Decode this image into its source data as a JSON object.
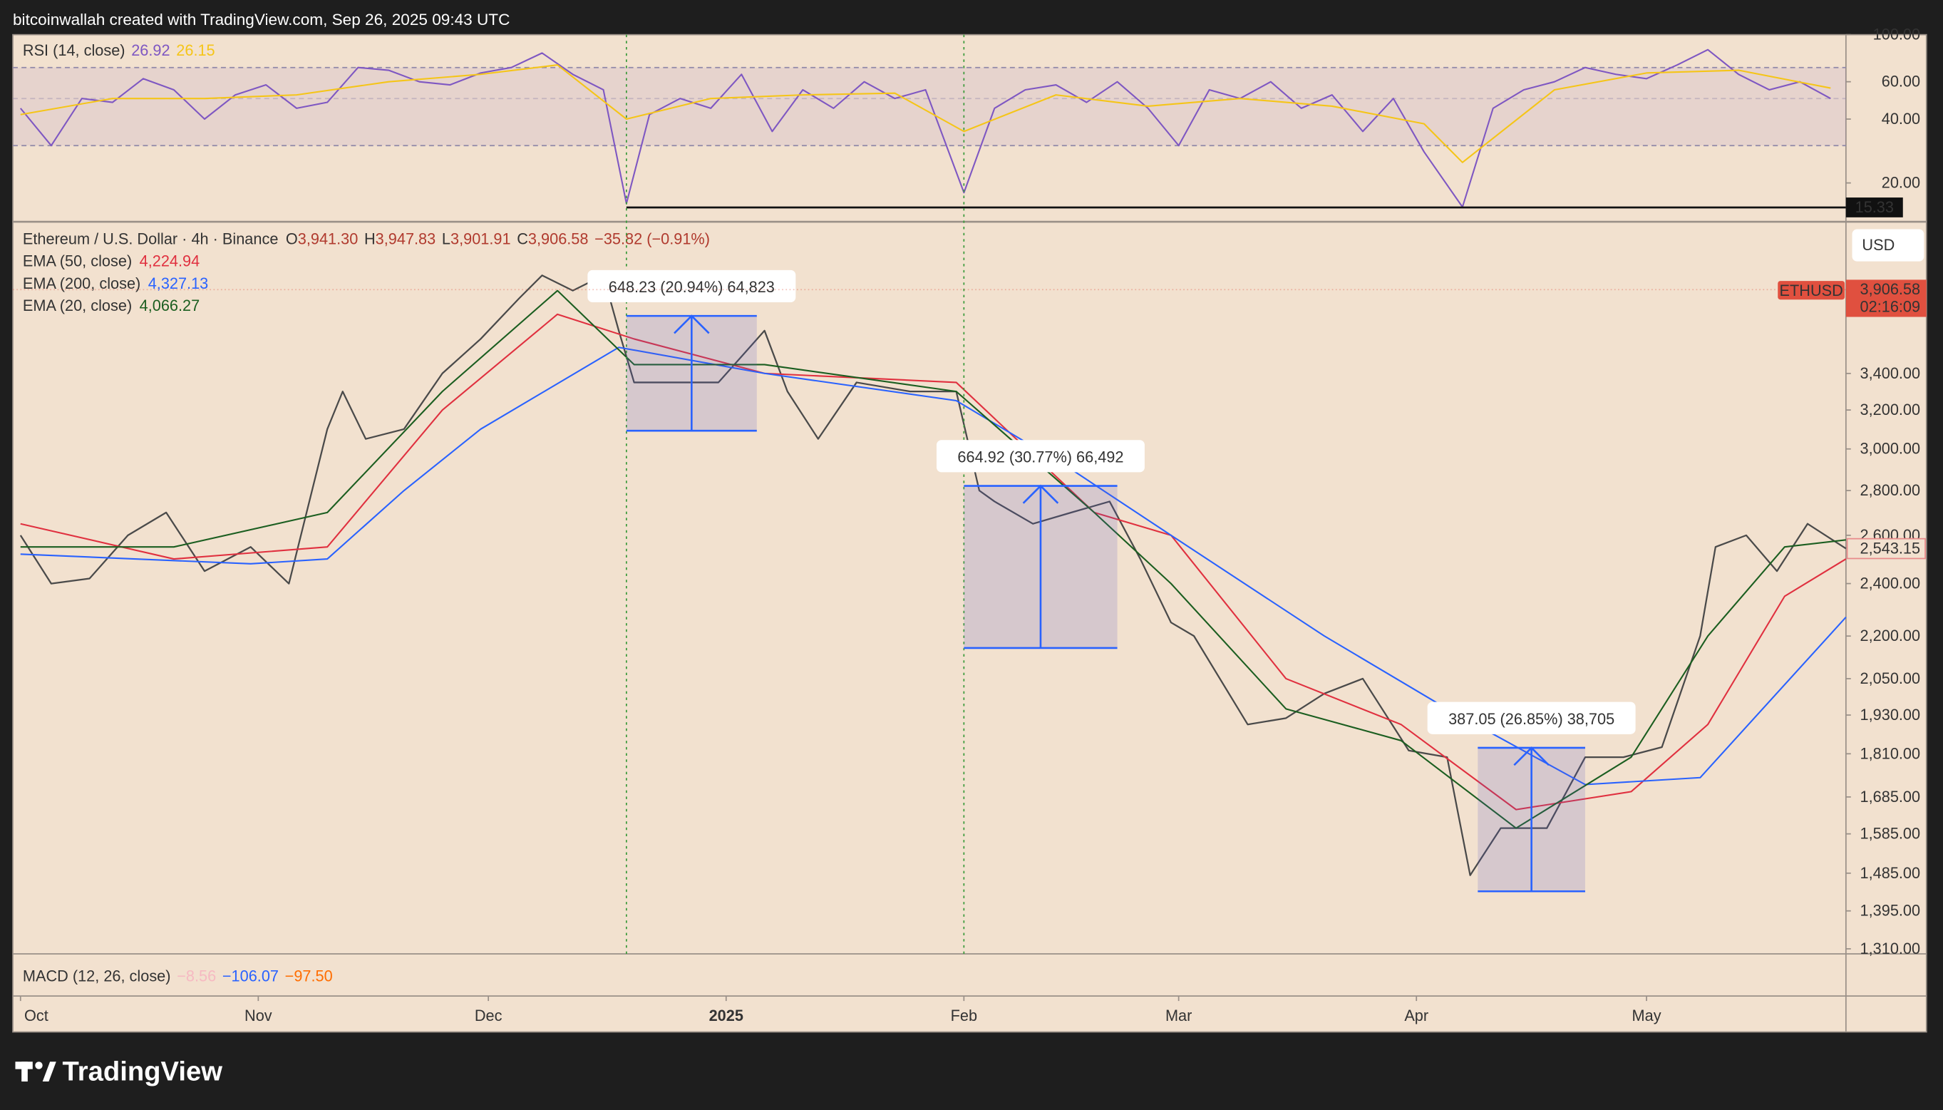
{
  "header": {
    "text": "bitcoinwallah created with TradingView.com, Sep 26, 2025 09:43 UTC"
  },
  "footer": {
    "logo": "TradingView"
  },
  "chart_data": [
    {
      "type": "line",
      "title": "RSI (14, close)",
      "log_scale": true,
      "xlim": [
        -1,
        238
      ],
      "ylim": [
        13.3,
        100
      ],
      "yticks": [
        {
          "value": 20,
          "label": "20.00"
        },
        {
          "value": 40,
          "label": "40.00"
        },
        {
          "value": 60,
          "label": "60.00"
        },
        {
          "value": 100,
          "label": "100.00"
        }
      ],
      "band": [
        30,
        70
      ],
      "midline": 50,
      "level": 15.33,
      "series": [
        {
          "color": "#7e57c2",
          "last": 26.92,
          "x": [
            0,
            4,
            8,
            12,
            16,
            20,
            24,
            28,
            32,
            36,
            40,
            44,
            48,
            52,
            56,
            60,
            64,
            68,
            72,
            76,
            79,
            82,
            86,
            90,
            94,
            98,
            102,
            106,
            110,
            114,
            118,
            123,
            127,
            131,
            135,
            139,
            143,
            147,
            151,
            155,
            159,
            163,
            167,
            171,
            175,
            179,
            183,
            188,
            192,
            196,
            200,
            204,
            208,
            212,
            216,
            220,
            224,
            228,
            232,
            236
          ],
          "values": [
            45,
            30,
            50,
            48,
            62,
            55,
            40,
            52,
            58,
            45,
            48,
            70,
            68,
            60,
            58,
            66,
            70,
            82,
            65,
            55,
            16,
            42,
            50,
            45,
            65,
            35,
            55,
            45,
            60,
            50,
            55,
            18,
            45,
            55,
            58,
            48,
            60,
            45,
            30,
            55,
            50,
            60,
            45,
            52,
            35,
            50,
            28,
            15.4,
            45,
            55,
            60,
            70,
            65,
            62,
            72,
            85,
            65,
            55,
            60,
            50
          ]
        },
        {
          "color": "#f5c518",
          "last": 26.15,
          "x": [
            0,
            12,
            24,
            36,
            48,
            60,
            70,
            79,
            90,
            102,
            114,
            123,
            135,
            147,
            159,
            171,
            183,
            188,
            200,
            212,
            224,
            236
          ],
          "values": [
            42,
            50,
            50,
            52,
            60,
            65,
            72,
            40,
            50,
            52,
            53,
            35,
            52,
            46,
            50,
            46,
            38,
            25,
            55,
            66,
            68,
            56
          ]
        }
      ]
    },
    {
      "type": "line",
      "title": "Ethereum / U.S. Dollar · 4h · Binance",
      "log_scale": true,
      "xlim": [
        -1,
        238
      ],
      "ylim": [
        1299,
        4363
      ],
      "ohlc": [
        {
          "prefix": "O",
          "value": 3941.3,
          "label": "3,941.30"
        },
        {
          "prefix": "H",
          "value": 3947.83,
          "label": "3,947.83"
        },
        {
          "prefix": "L",
          "value": 3901.91,
          "label": "3,901.91"
        },
        {
          "prefix": "C",
          "value": 3906.58,
          "label": "3,906.58"
        }
      ],
      "change": {
        "value": -35.82,
        "label": "−35.82 (−0.91%)"
      },
      "yticks": [
        {
          "value": 1310,
          "label": "1,310.00"
        },
        {
          "value": 1395,
          "label": "1,395.00"
        },
        {
          "value": 1485,
          "label": "1,485.00"
        },
        {
          "value": 1585,
          "label": "1,585.00"
        },
        {
          "value": 1685,
          "label": "1,685.00"
        },
        {
          "value": 1810,
          "label": "1,810.00"
        },
        {
          "value": 1930,
          "label": "1,930.00"
        },
        {
          "value": 2050,
          "label": "2,050.00"
        },
        {
          "value": 2200,
          "label": "2,200.00"
        },
        {
          "value": 2400,
          "label": "2,400.00"
        },
        {
          "value": 2600,
          "label": "2,600.00"
        },
        {
          "value": 2800,
          "label": "2,800.00"
        },
        {
          "value": 3000,
          "label": "3,000.00"
        },
        {
          "value": 3200,
          "label": "3,200.00"
        },
        {
          "value": 3400,
          "label": "3,400.00"
        }
      ],
      "xticks": [
        {
          "value": 0,
          "label": "Oct"
        },
        {
          "value": 31,
          "label": "Nov"
        },
        {
          "value": 61,
          "label": "Dec"
        },
        {
          "value": 92,
          "label": "2025"
        },
        {
          "value": 123,
          "label": "Feb"
        },
        {
          "value": 151,
          "label": "Mar"
        },
        {
          "value": 182,
          "label": "Apr"
        },
        {
          "value": 212,
          "label": "May"
        }
      ],
      "currency": "USD",
      "symbol": "ETHUSD",
      "current_price": {
        "value": 3906.58,
        "label": "3,906.58"
      },
      "countdown": "02:16:09",
      "last_price": {
        "value": 2543.15,
        "label": "2,543.15"
      },
      "vlines": [
        79,
        123
      ],
      "series": [
        {
          "color": "#4a4a4a",
          "x": [
            0,
            4,
            9,
            14,
            19,
            24,
            30,
            35,
            40,
            42,
            45,
            50,
            55,
            60,
            65,
            68,
            72,
            76,
            78,
            80,
            85,
            91,
            97,
            100,
            104,
            109,
            116,
            122,
            125,
            127,
            132,
            137,
            142,
            146,
            150,
            153,
            160,
            165,
            170,
            175,
            181,
            186,
            189,
            193,
            199,
            204,
            209,
            214,
            219,
            221,
            225,
            229,
            233,
            238
          ],
          "values": [
            2600,
            2400,
            2420,
            2600,
            2700,
            2450,
            2550,
            2400,
            3100,
            3300,
            3050,
            3100,
            3400,
            3600,
            3850,
            4000,
            3900,
            4000,
            3650,
            3350,
            3350,
            3350,
            3650,
            3300,
            3050,
            3350,
            3300,
            3300,
            2800,
            2750,
            2650,
            2700,
            2750,
            2500,
            2250,
            2200,
            1900,
            1920,
            2000,
            2050,
            1820,
            1800,
            1480,
            1600,
            1600,
            1800,
            1800,
            1830,
            2200,
            2550,
            2600,
            2450,
            2650,
            2543.15
          ]
        },
        {
          "name": "EMA (50, close)",
          "color": "#e0303f",
          "last": {
            "value": 4224.94,
            "label": "4,224.94"
          },
          "x": [
            0,
            20,
            40,
            55,
            70,
            80,
            97,
            122,
            140,
            150,
            165,
            180,
            195,
            210,
            220,
            230,
            238
          ],
          "values": [
            2650,
            2500,
            2550,
            3200,
            3750,
            3600,
            3400,
            3350,
            2700,
            2600,
            2050,
            1900,
            1650,
            1700,
            1900,
            2350,
            2500
          ]
        },
        {
          "name": "EMA (200, close)",
          "color": "#2962ff",
          "last": {
            "value": 4327.13,
            "label": "4,327.13"
          },
          "x": [
            0,
            30,
            40,
            50,
            60,
            78,
            97,
            122,
            137,
            150,
            170,
            186,
            204,
            219,
            238
          ],
          "values": [
            2520,
            2480,
            2500,
            2800,
            3100,
            3550,
            3400,
            3250,
            2900,
            2600,
            2200,
            1950,
            1720,
            1740,
            2270
          ]
        },
        {
          "name": "EMA (20, close)",
          "color": "#1b5e20",
          "last": {
            "value": 4066.27,
            "label": "4,066.27"
          },
          "x": [
            0,
            20,
            40,
            55,
            70,
            80,
            97,
            122,
            140,
            150,
            165,
            180,
            195,
            210,
            220,
            230,
            238
          ],
          "values": [
            2550,
            2550,
            2700,
            3300,
            3900,
            3450,
            3450,
            3300,
            2700,
            2400,
            1950,
            1850,
            1600,
            1800,
            2200,
            2550,
            2580
          ]
        }
      ],
      "measures": [
        {
          "label": "648.23 (20.94%) 64,823",
          "x0": 79,
          "x1": 96,
          "low": 3092,
          "high": 3740.23
        },
        {
          "label": "664.92 (30.77%) 66,492",
          "x0": 123,
          "x1": 143,
          "low": 2157,
          "high": 2821.92
        },
        {
          "label": "387.05 (26.85%) 38,705",
          "x0": 190,
          "x1": 204,
          "low": 1441,
          "high": 1828.05
        }
      ]
    },
    {
      "type": "line",
      "title": "MACD (12, 26, close)",
      "legend_values": [
        {
          "value": -8.56,
          "label": "−8.56",
          "color": "#f6b9c2"
        },
        {
          "value": -106.07,
          "label": "−106.07",
          "color": "#2962ff"
        },
        {
          "value": -97.5,
          "label": "−97.50",
          "color": "#ff6d00"
        }
      ]
    }
  ]
}
